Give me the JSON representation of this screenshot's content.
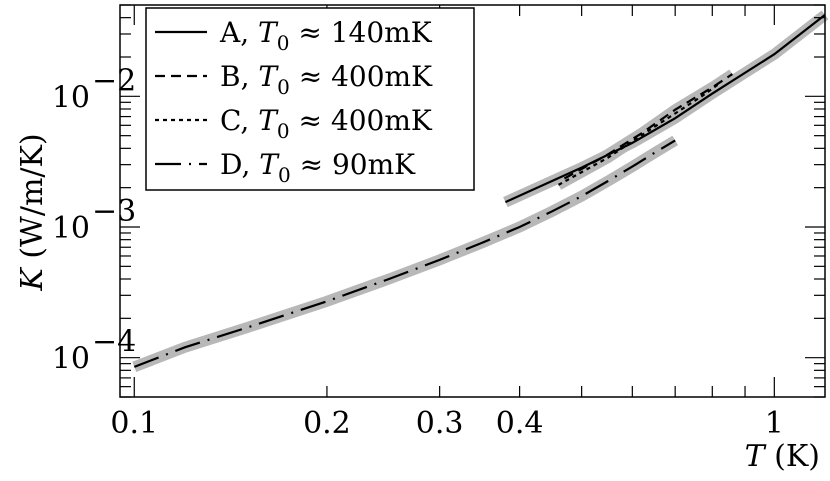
{
  "chart_data": {
    "type": "line",
    "title": "",
    "xlabel": {
      "symbol": "T",
      "unit": " (K)"
    },
    "ylabel": {
      "symbol": "K",
      "unit": " (W/m/K)"
    },
    "xscale": "log",
    "yscale": "log",
    "xlim": [
      0.095,
      1.2
    ],
    "ylim": [
      5e-05,
      0.05
    ],
    "grid": false,
    "legend_position": "top-left",
    "x_ticks": [
      {
        "value": 0.1,
        "label": "0.1"
      },
      {
        "value": 0.2,
        "label": "0.2"
      },
      {
        "value": 0.3,
        "label": "0.3"
      },
      {
        "value": 0.4,
        "label": "0.4"
      },
      {
        "value": 1,
        "label": "1"
      }
    ],
    "y_ticks": [
      {
        "value": 0.0001,
        "mant": "10",
        "exp": "−4"
      },
      {
        "value": 0.001,
        "mant": "10",
        "exp": "−3"
      },
      {
        "value": 0.01,
        "mant": "10",
        "exp": "−2"
      }
    ],
    "band_color": "#b8b8b8",
    "series": [
      {
        "name": "A",
        "legend": {
          "id": "A, ",
          "sym": "T",
          "sub": "0",
          "rest": " ≈ 140mK"
        },
        "dash": "none",
        "x": [
          0.38,
          0.5,
          0.6,
          0.7,
          0.8,
          1.0,
          1.2
        ],
        "y": [
          0.00155,
          0.00285,
          0.0044,
          0.0068,
          0.0105,
          0.021,
          0.042
        ]
      },
      {
        "name": "B",
        "legend": {
          "id": "B, ",
          "sym": "T",
          "sub": "0",
          "rest": " ≈ 400mK"
        },
        "dash": "10,6",
        "x": [
          0.47,
          0.55,
          0.62,
          0.7,
          0.8,
          0.86
        ],
        "y": [
          0.00235,
          0.0036,
          0.0052,
          0.0079,
          0.0117,
          0.0148
        ]
      },
      {
        "name": "C",
        "legend": {
          "id": "C, ",
          "sym": "T",
          "sub": "0",
          "rest": " ≈ 400mK"
        },
        "dash": "4,4",
        "x": [
          0.46,
          0.55,
          0.63,
          0.7,
          0.77,
          0.82
        ],
        "y": [
          0.0021,
          0.0034,
          0.0053,
          0.0074,
          0.01,
          0.0125
        ]
      },
      {
        "name": "D",
        "legend": {
          "id": "D, ",
          "sym": "T",
          "sub": "0",
          "rest": " ≈ 90mK"
        },
        "dash": "26,8,2,8",
        "x": [
          0.1,
          0.12,
          0.15,
          0.2,
          0.25,
          0.3,
          0.35,
          0.4,
          0.45,
          0.5,
          0.55,
          0.6,
          0.65,
          0.7
        ],
        "y": [
          8.5e-05,
          0.00012,
          0.00017,
          0.00027,
          0.0004,
          0.00056,
          0.00076,
          0.001,
          0.00132,
          0.00172,
          0.00225,
          0.0029,
          0.0037,
          0.0046
        ]
      }
    ]
  }
}
